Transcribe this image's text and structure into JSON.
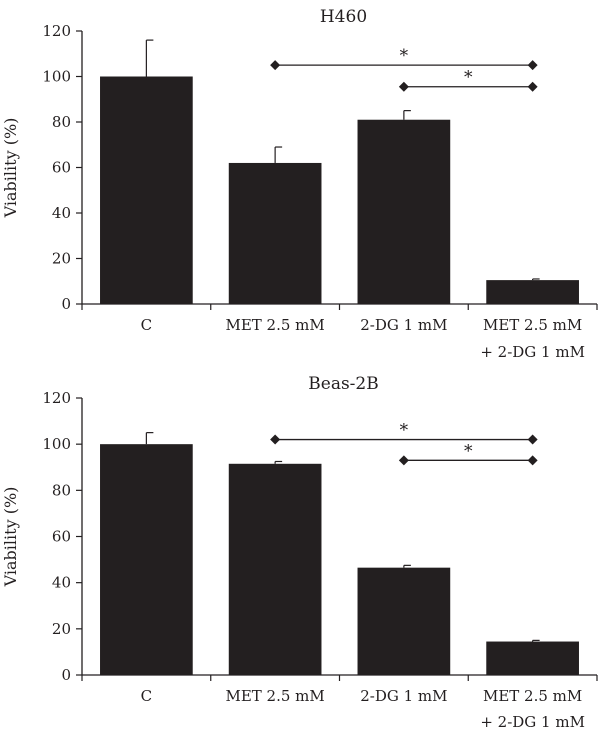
{
  "chart_data": [
    {
      "type": "bar",
      "title": "H460",
      "ylabel": "Viability (%)",
      "xlabel": "",
      "ylim": [
        0,
        120
      ],
      "yticks": [
        0,
        20,
        40,
        60,
        80,
        100,
        120
      ],
      "grid": false,
      "categories": [
        [
          "C"
        ],
        [
          "MET 2.5 mM"
        ],
        [
          "2-DG 1 mM"
        ],
        [
          "MET 2.5 mM",
          "+ 2-DG 1 mM"
        ]
      ],
      "values": [
        100,
        62,
        81,
        10.5
      ],
      "errors": [
        16,
        7,
        4,
        0.5
      ],
      "bar_color": "#231f20",
      "significance": [
        {
          "from": 1,
          "to": 3,
          "label": "*",
          "y": 105
        },
        {
          "from": 2,
          "to": 3,
          "label": "*",
          "y": 95.5
        }
      ]
    },
    {
      "type": "bar",
      "title": "Beas-2B",
      "ylabel": "Viability (%)",
      "xlabel": "",
      "ylim": [
        0,
        120
      ],
      "yticks": [
        0,
        20,
        40,
        60,
        80,
        100,
        120
      ],
      "grid": false,
      "categories": [
        [
          "C"
        ],
        [
          "MET 2.5 mM"
        ],
        [
          "2-DG 1 mM"
        ],
        [
          "MET 2.5 mM",
          "+ 2-DG 1 mM"
        ]
      ],
      "values": [
        100,
        91.5,
        46.5,
        14.5
      ],
      "errors": [
        5,
        1,
        1,
        0.5
      ],
      "bar_color": "#231f20",
      "significance": [
        {
          "from": 1,
          "to": 3,
          "label": "*",
          "y": 102
        },
        {
          "from": 2,
          "to": 3,
          "label": "*",
          "y": 93
        }
      ]
    }
  ]
}
